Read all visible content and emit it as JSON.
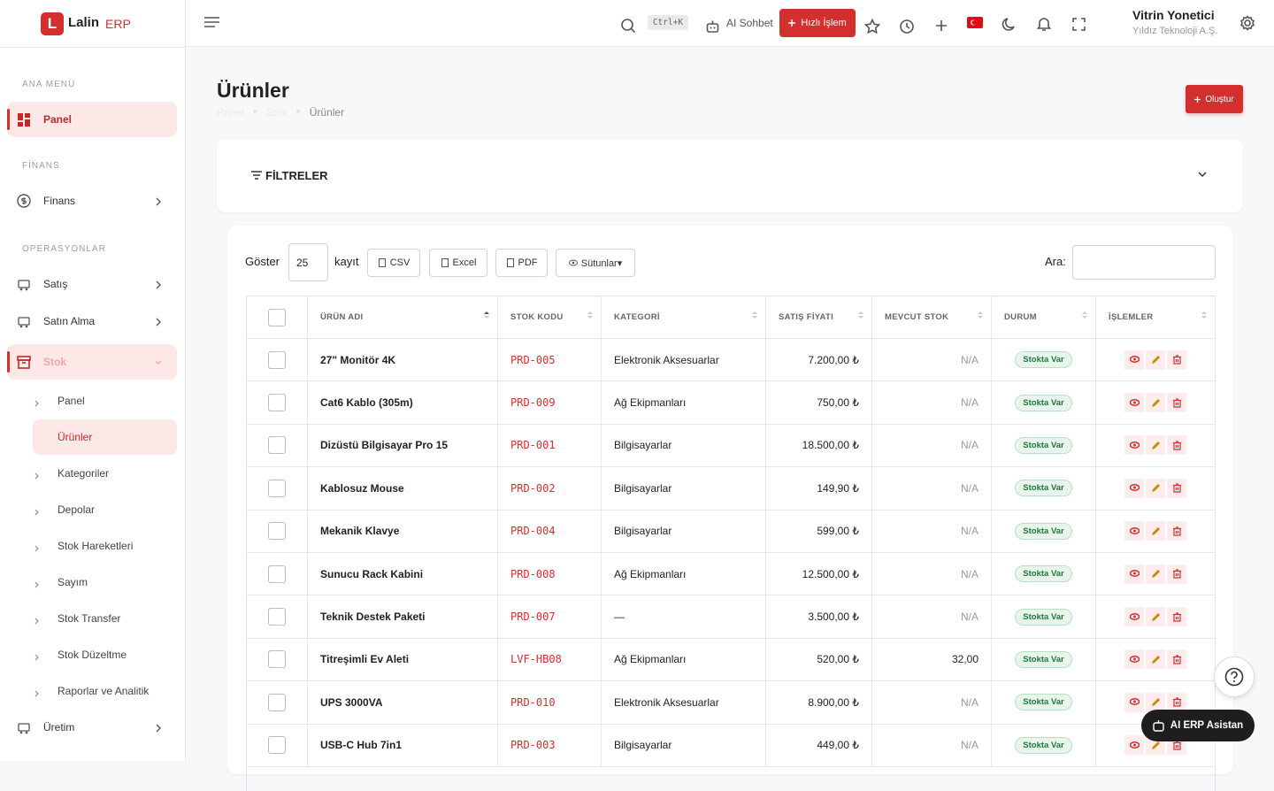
{
  "brand": {
    "logo": "L",
    "name": "Lalin",
    "suffix": "ERP"
  },
  "topbar": {
    "shortcut": "Ctrl+K",
    "ai": "AI Sohbet",
    "quick": "Hızlı İşlem",
    "user": {
      "name": "Vitrin Yonetici",
      "company": "Yıldız Teknoloji A.Ş."
    }
  },
  "sidebar": [
    {
      "title": "ANA MENÜ",
      "items": [
        {
          "label": "Panel",
          "active": true
        }
      ]
    },
    {
      "title": "FİNANS",
      "items": [
        {
          "label": "Finans",
          "arrow": true
        }
      ]
    },
    {
      "title": "OPERASYONLAR",
      "items": [
        {
          "label": "Satış",
          "arrow": true
        },
        {
          "label": "Satın Alma",
          "arrow": true
        },
        {
          "label": "Stok",
          "active": true,
          "open": true,
          "children": [
            {
              "label": "Panel"
            },
            {
              "label": "Ürünler",
              "active": true
            },
            {
              "label": "Kategoriler"
            },
            {
              "label": "Depolar"
            },
            {
              "label": "Stok Hareketleri"
            },
            {
              "label": "Sayım"
            },
            {
              "label": "Stok Transfer"
            },
            {
              "label": "Stok Düzeltme"
            },
            {
              "label": "Raporlar ve Analitik"
            }
          ]
        },
        {
          "label": "Üretim",
          "arrow": true
        }
      ]
    }
  ],
  "page": {
    "title": "Ürünler",
    "breadcrumb": [
      "Panel",
      "Stok",
      "Ürünler"
    ],
    "create": "Oluştur"
  },
  "filters": {
    "title": "FİLTRELER"
  },
  "table": {
    "show": "Göster",
    "page_size": "25",
    "records": "kayıt",
    "buttons": [
      "CSV",
      "Excel",
      "PDF",
      "Sütunlar▾"
    ],
    "search": "Ara:",
    "headers": [
      "ÜRÜN ADI",
      "STOK KODU",
      "KATEGORİ",
      "SATIŞ FİYATI",
      "MEVCUT STOK",
      "DURUM",
      "İŞLEMLER"
    ],
    "rows": [
      [
        "27\" Monitör 4K",
        "PRD-005",
        "Elektronik Aksesuarlar",
        "7.200,00 ₺",
        "N/A",
        "Stokta Var"
      ],
      [
        "Cat6 Kablo (305m)",
        "PRD-009",
        "Ağ Ekipmanları",
        "750,00 ₺",
        "N/A",
        "Stokta Var"
      ],
      [
        "Dizüstü Bilgisayar Pro 15",
        "PRD-001",
        "Bilgisayarlar",
        "18.500,00 ₺",
        "N/A",
        "Stokta Var"
      ],
      [
        "Kablosuz Mouse",
        "PRD-002",
        "Bilgisayarlar",
        "149,90 ₺",
        "N/A",
        "Stokta Var"
      ],
      [
        "Mekanik Klavye",
        "PRD-004",
        "Bilgisayarlar",
        "599,00 ₺",
        "N/A",
        "Stokta Var"
      ],
      [
        "Sunucu Rack Kabini",
        "PRD-008",
        "Ağ Ekipmanları",
        "12.500,00 ₺",
        "N/A",
        "Stokta Var"
      ],
      [
        "Teknik Destek Paketi",
        "PRD-007",
        "—",
        "3.500,00 ₺",
        "N/A",
        "Stokta Var"
      ],
      [
        "Titreşimli Ev Aleti",
        "LVF-HB08",
        "Ağ Ekipmanları",
        "520,00 ₺",
        "32,00",
        "Stokta Var"
      ],
      [
        "UPS 3000VA",
        "PRD-010",
        "Elektronik Aksesuarlar",
        "8.900,00 ₺",
        "N/A",
        "Stokta Var"
      ],
      [
        "USB-C Hub 7in1",
        "PRD-003",
        "Bilgisayarlar",
        "449,00 ₺",
        "N/A",
        "Stokta Var"
      ]
    ]
  },
  "assistant": "AI ERP Asistan"
}
